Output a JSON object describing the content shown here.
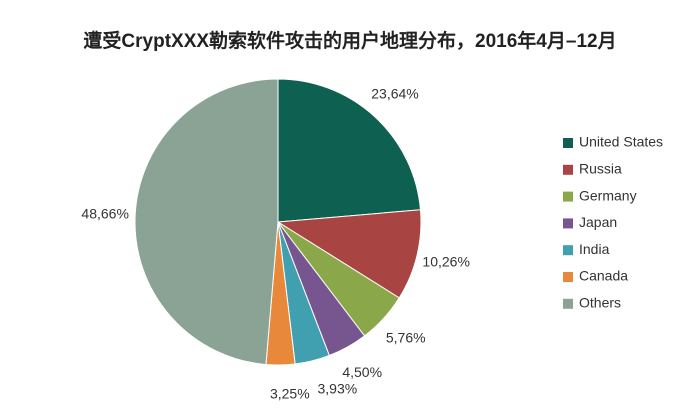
{
  "chart_data": {
    "type": "pie",
    "title": "遭受CryptXXX勒索软件攻击的用户地理分布，2016年4月–12月",
    "categories": [
      "United States",
      "Russia",
      "Germany",
      "Japan",
      "India",
      "Canada",
      "Others"
    ],
    "values": [
      23.64,
      10.26,
      5.76,
      4.5,
      3.93,
      3.25,
      48.66
    ],
    "value_labels": [
      "23,64%",
      "10,26%",
      "5,76%",
      "4,50%",
      "3,93%",
      "3,25%",
      "48,66%"
    ],
    "colors": [
      "#0e6150",
      "#a84543",
      "#8aa84a",
      "#77558f",
      "#41a0b0",
      "#e8883a",
      "#8aa395"
    ],
    "legend": "right"
  }
}
